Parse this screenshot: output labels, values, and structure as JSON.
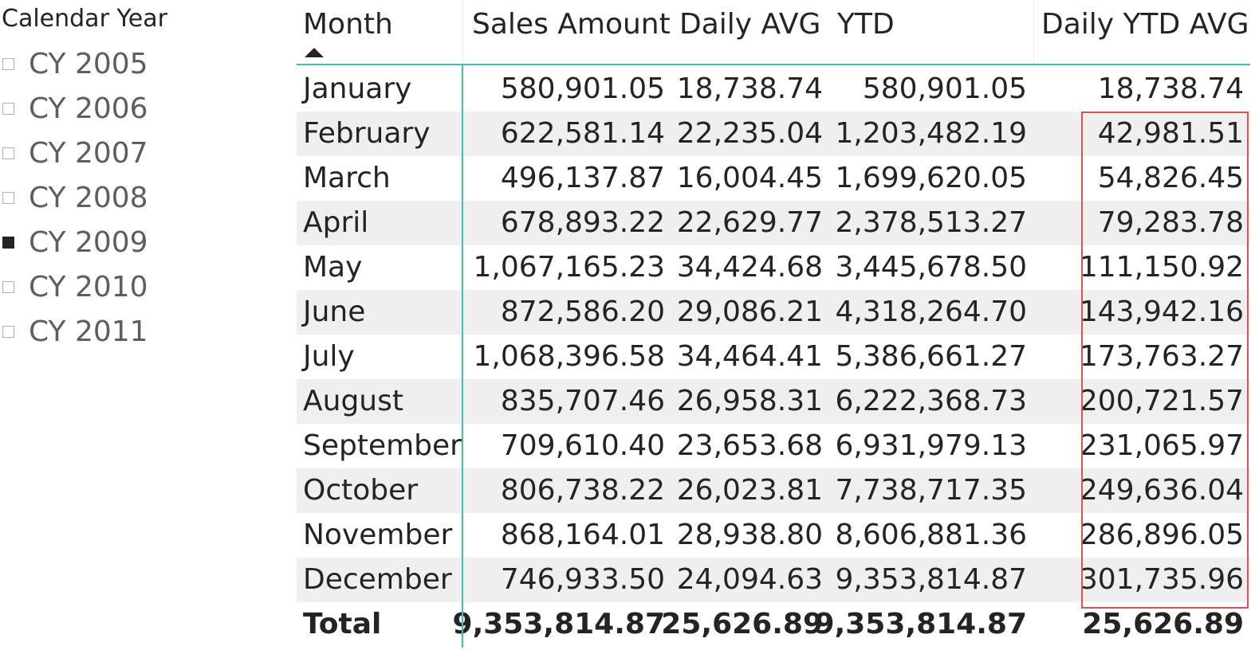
{
  "slicer": {
    "title": "Calendar Year",
    "items": [
      {
        "label": "CY 2005",
        "checked": false
      },
      {
        "label": "CY 2006",
        "checked": false
      },
      {
        "label": "CY 2007",
        "checked": false
      },
      {
        "label": "CY 2008",
        "checked": false
      },
      {
        "label": "CY 2009",
        "checked": true
      },
      {
        "label": "CY 2010",
        "checked": false
      },
      {
        "label": "CY 2011",
        "checked": false
      }
    ]
  },
  "table": {
    "headers": {
      "month": "Month",
      "sales_amount": "Sales Amount",
      "daily_avg": "Daily AVG",
      "ytd": "YTD",
      "daily_ytd_avg": "Daily YTD AVG"
    },
    "sort": {
      "column": "month",
      "direction": "ascending"
    },
    "rows": [
      {
        "month": "January",
        "sales": "580,901.05",
        "daily": "18,738.74",
        "ytd": "580,901.05",
        "ytd_avg": "18,738.74"
      },
      {
        "month": "February",
        "sales": "622,581.14",
        "daily": "22,235.04",
        "ytd": "1,203,482.19",
        "ytd_avg": "42,981.51"
      },
      {
        "month": "March",
        "sales": "496,137.87",
        "daily": "16,004.45",
        "ytd": "1,699,620.05",
        "ytd_avg": "54,826.45"
      },
      {
        "month": "April",
        "sales": "678,893.22",
        "daily": "22,629.77",
        "ytd": "2,378,513.27",
        "ytd_avg": "79,283.78"
      },
      {
        "month": "May",
        "sales": "1,067,165.23",
        "daily": "34,424.68",
        "ytd": "3,445,678.50",
        "ytd_avg": "111,150.92"
      },
      {
        "month": "June",
        "sales": "872,586.20",
        "daily": "29,086.21",
        "ytd": "4,318,264.70",
        "ytd_avg": "143,942.16"
      },
      {
        "month": "July",
        "sales": "1,068,396.58",
        "daily": "34,464.41",
        "ytd": "5,386,661.27",
        "ytd_avg": "173,763.27"
      },
      {
        "month": "August",
        "sales": "835,707.46",
        "daily": "26,958.31",
        "ytd": "6,222,368.73",
        "ytd_avg": "200,721.57"
      },
      {
        "month": "September",
        "sales": "709,610.40",
        "daily": "23,653.68",
        "ytd": "6,931,979.13",
        "ytd_avg": "231,065.97"
      },
      {
        "month": "October",
        "sales": "806,738.22",
        "daily": "26,023.81",
        "ytd": "7,738,717.35",
        "ytd_avg": "249,636.04"
      },
      {
        "month": "November",
        "sales": "868,164.01",
        "daily": "28,938.80",
        "ytd": "8,606,881.36",
        "ytd_avg": "286,896.05"
      },
      {
        "month": "December",
        "sales": "746,933.50",
        "daily": "24,094.63",
        "ytd": "9,353,814.87",
        "ytd_avg": "301,735.96"
      }
    ],
    "total": {
      "month": "Total",
      "sales": "9,353,814.87",
      "daily": "25,626.89",
      "ytd": "9,353,814.87",
      "ytd_avg": "25,626.89"
    }
  },
  "colors": {
    "accent_line": "#3fbfb0",
    "highlight_box": "#e05252",
    "alt_row": "#efefef",
    "text": "#252423",
    "slicer_text": "#605e5c"
  }
}
